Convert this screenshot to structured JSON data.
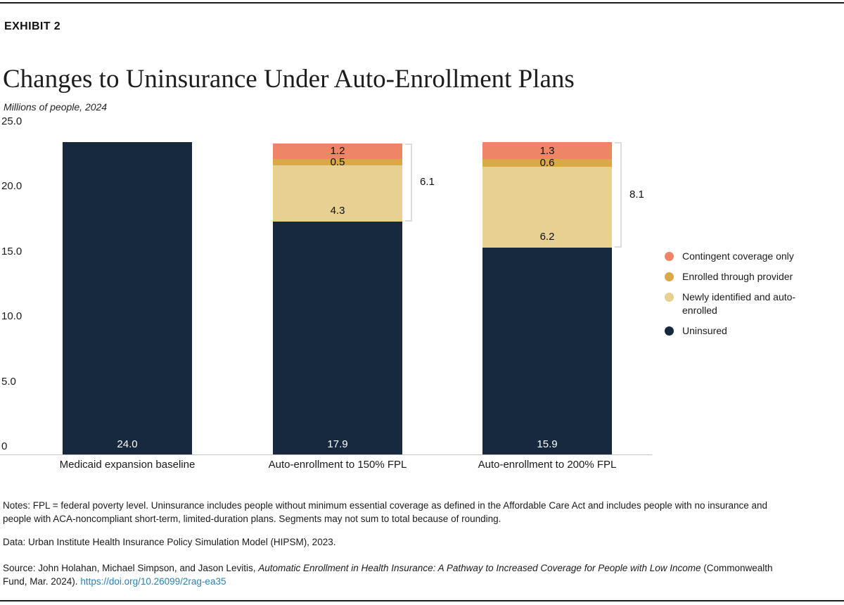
{
  "header": {
    "eyebrow": "EXHIBIT 2",
    "title": "Changes to Uninsurance Under Auto-Enrollment Plans",
    "subtitle": "Millions of people, 2024"
  },
  "chart_data": {
    "type": "bar",
    "stacked": true,
    "title": "Changes to Uninsurance Under Auto-Enrollment Plans",
    "subtitle": "Millions of people, 2024",
    "xlabel": "",
    "ylabel": "Millions of people",
    "ylim": [
      0,
      25
    ],
    "grid": false,
    "legend_position": "right",
    "segment_order": "top-to-bottom",
    "y_axis": {
      "ticks": [
        {
          "label": "25.0",
          "value": 25
        },
        {
          "label": "20.0",
          "value": 20
        },
        {
          "label": "15.0",
          "value": 15
        },
        {
          "label": "10.0",
          "value": 10
        },
        {
          "label": "5.0",
          "value": 5
        },
        {
          "label": "0",
          "value": 0
        }
      ]
    },
    "colors": {
      "contingent": "#EF8567",
      "provider": "#D8A946",
      "newly": "#E8CF92",
      "uninsured": "#16293F"
    },
    "bars": [
      {
        "category": "Medicaid expansion baseline",
        "segments": [
          {
            "key": "uninsured",
            "label": "24.0",
            "value": 24.0
          }
        ]
      },
      {
        "category": "Auto-enrollment to 150% FPL",
        "bracket_label": "6.1",
        "segments": [
          {
            "key": "contingent",
            "label": "1.2",
            "value": 1.2
          },
          {
            "key": "provider",
            "label": "0.5",
            "value": 0.5
          },
          {
            "key": "newly",
            "label": "4.3",
            "value": 4.3
          },
          {
            "key": "uninsured",
            "label": "17.9",
            "value": 17.9
          }
        ]
      },
      {
        "category": "Auto-enrollment to 200% FPL",
        "bracket_label": "8.1",
        "segments": [
          {
            "key": "contingent",
            "label": "1.3",
            "value": 1.3
          },
          {
            "key": "provider",
            "label": "0.6",
            "value": 0.6
          },
          {
            "key": "newly",
            "label": "6.2",
            "value": 6.2
          },
          {
            "key": "uninsured",
            "label": "15.9",
            "value": 15.9
          }
        ]
      }
    ],
    "legend": [
      {
        "key": "contingent",
        "label": "Contingent coverage only"
      },
      {
        "key": "provider",
        "label": "Enrolled through provider"
      },
      {
        "key": "newly",
        "label": "Newly identified and auto-enrolled"
      },
      {
        "key": "uninsured",
        "label": "Uninsured"
      }
    ]
  },
  "footer": {
    "notes": "Notes: FPL = federal poverty level. Uninsurance includes people without minimum essential coverage as defined in the Affordable Care Act and includes people with no insurance and people with ACA-noncompliant short-term, limited-duration plans. Segments may not sum to total because of rounding.",
    "data_line": "Data: Urban Institute Health Insurance Policy Simulation Model (HIPSM), 2023.",
    "source": {
      "prefix": "Source: John Holahan, Michael Simpson, and Jason Levitis, ",
      "work_title": "Automatic Enrollment in Health Insurance: A Pathway to Increased Coverage for People with Low Income",
      "suffix": " (Commonwealth Fund, Mar. 2024). ",
      "link": "https://doi.org/10.26099/2rag-ea35"
    }
  },
  "colors": {
    "link": "#2E80B0",
    "text": "#1A1A1A"
  }
}
